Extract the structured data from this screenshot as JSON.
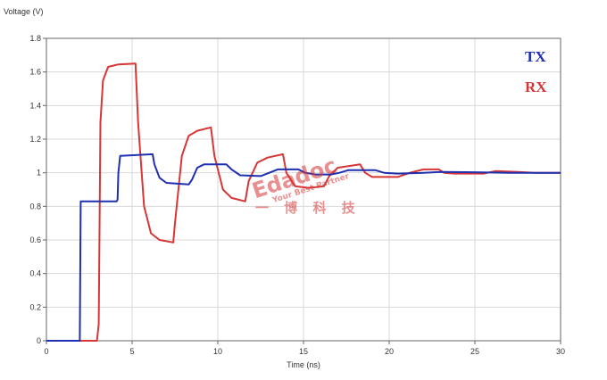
{
  "chart_data": {
    "type": "line",
    "title": "",
    "xlabel": "Time (ns)",
    "ylabel": "Voltage (V)",
    "xlim": [
      0,
      30
    ],
    "ylim": [
      0,
      1.8
    ],
    "xticks": [
      0,
      5,
      10,
      15,
      20,
      25,
      30
    ],
    "yticks": [
      0,
      0.2,
      0.4,
      0.6,
      0.8,
      1,
      1.2,
      1.4,
      1.6,
      1.8
    ],
    "xtick_labels": [
      "0",
      "5",
      "10",
      "15",
      "20",
      "25",
      "30"
    ],
    "ytick_labels": [
      "0",
      "0.2",
      "0.4",
      "0.6",
      "0.8",
      "1",
      "1.2",
      "1.4",
      "1.6",
      "1.8"
    ],
    "grid": true,
    "legend_position": "top-right",
    "series": [
      {
        "name": "TX",
        "color": "#1f2fb0",
        "points": [
          [
            0,
            0
          ],
          [
            1.95,
            0
          ],
          [
            2.0,
            0.83
          ],
          [
            4.1,
            0.83
          ],
          [
            4.15,
            0.84
          ],
          [
            4.2,
            1.0
          ],
          [
            4.3,
            1.1
          ],
          [
            6.2,
            1.11
          ],
          [
            6.3,
            1.05
          ],
          [
            6.6,
            0.97
          ],
          [
            7.0,
            0.94
          ],
          [
            8.3,
            0.93
          ],
          [
            8.5,
            0.96
          ],
          [
            8.8,
            1.03
          ],
          [
            9.2,
            1.05
          ],
          [
            10.5,
            1.05
          ],
          [
            10.8,
            1.02
          ],
          [
            11.3,
            0.985
          ],
          [
            12.5,
            0.98
          ],
          [
            13.0,
            1.0
          ],
          [
            13.5,
            1.02
          ],
          [
            14.7,
            1.02
          ],
          [
            15.1,
            1.0
          ],
          [
            15.7,
            0.99
          ],
          [
            16.6,
            0.99
          ],
          [
            17.1,
            1.0
          ],
          [
            17.6,
            1.015
          ],
          [
            19.2,
            1.015
          ],
          [
            19.7,
            1.0
          ],
          [
            20.5,
            0.995
          ],
          [
            22.0,
            1.0
          ],
          [
            23.0,
            1.005
          ],
          [
            25.0,
            1.003
          ],
          [
            27.0,
            1.0
          ],
          [
            30,
            1.0
          ]
        ]
      },
      {
        "name": "RX",
        "color": "#d63636",
        "points": [
          [
            0,
            0
          ],
          [
            2.95,
            0
          ],
          [
            3.05,
            0.1
          ],
          [
            3.15,
            1.3
          ],
          [
            3.3,
            1.55
          ],
          [
            3.6,
            1.63
          ],
          [
            4.2,
            1.645
          ],
          [
            5.2,
            1.65
          ],
          [
            5.35,
            1.3
          ],
          [
            5.7,
            0.8
          ],
          [
            6.1,
            0.64
          ],
          [
            6.6,
            0.6
          ],
          [
            7.4,
            0.585
          ],
          [
            7.5,
            0.7
          ],
          [
            7.9,
            1.1
          ],
          [
            8.3,
            1.22
          ],
          [
            8.8,
            1.25
          ],
          [
            9.6,
            1.27
          ],
          [
            9.8,
            1.1
          ],
          [
            10.3,
            0.9
          ],
          [
            10.8,
            0.85
          ],
          [
            11.6,
            0.83
          ],
          [
            11.8,
            0.95
          ],
          [
            12.3,
            1.06
          ],
          [
            12.9,
            1.09
          ],
          [
            13.8,
            1.11
          ],
          [
            14.0,
            1.0
          ],
          [
            14.5,
            0.92
          ],
          [
            15.3,
            0.91
          ],
          [
            16.2,
            0.92
          ],
          [
            16.5,
            0.98
          ],
          [
            17.0,
            1.03
          ],
          [
            18.3,
            1.05
          ],
          [
            18.6,
            1.0
          ],
          [
            19.0,
            0.975
          ],
          [
            20.5,
            0.975
          ],
          [
            21.2,
            1.0
          ],
          [
            22.0,
            1.02
          ],
          [
            22.9,
            1.02
          ],
          [
            23.2,
            1.0
          ],
          [
            23.8,
            0.995
          ],
          [
            25.5,
            0.995
          ],
          [
            26.2,
            1.01
          ],
          [
            27.5,
            1.005
          ],
          [
            28.5,
            1.0
          ],
          [
            30,
            1.0
          ]
        ]
      }
    ]
  },
  "watermark": {
    "main": "Edadoc",
    "sub": "Your Best Partner",
    "chars": "一 博 科 技"
  }
}
